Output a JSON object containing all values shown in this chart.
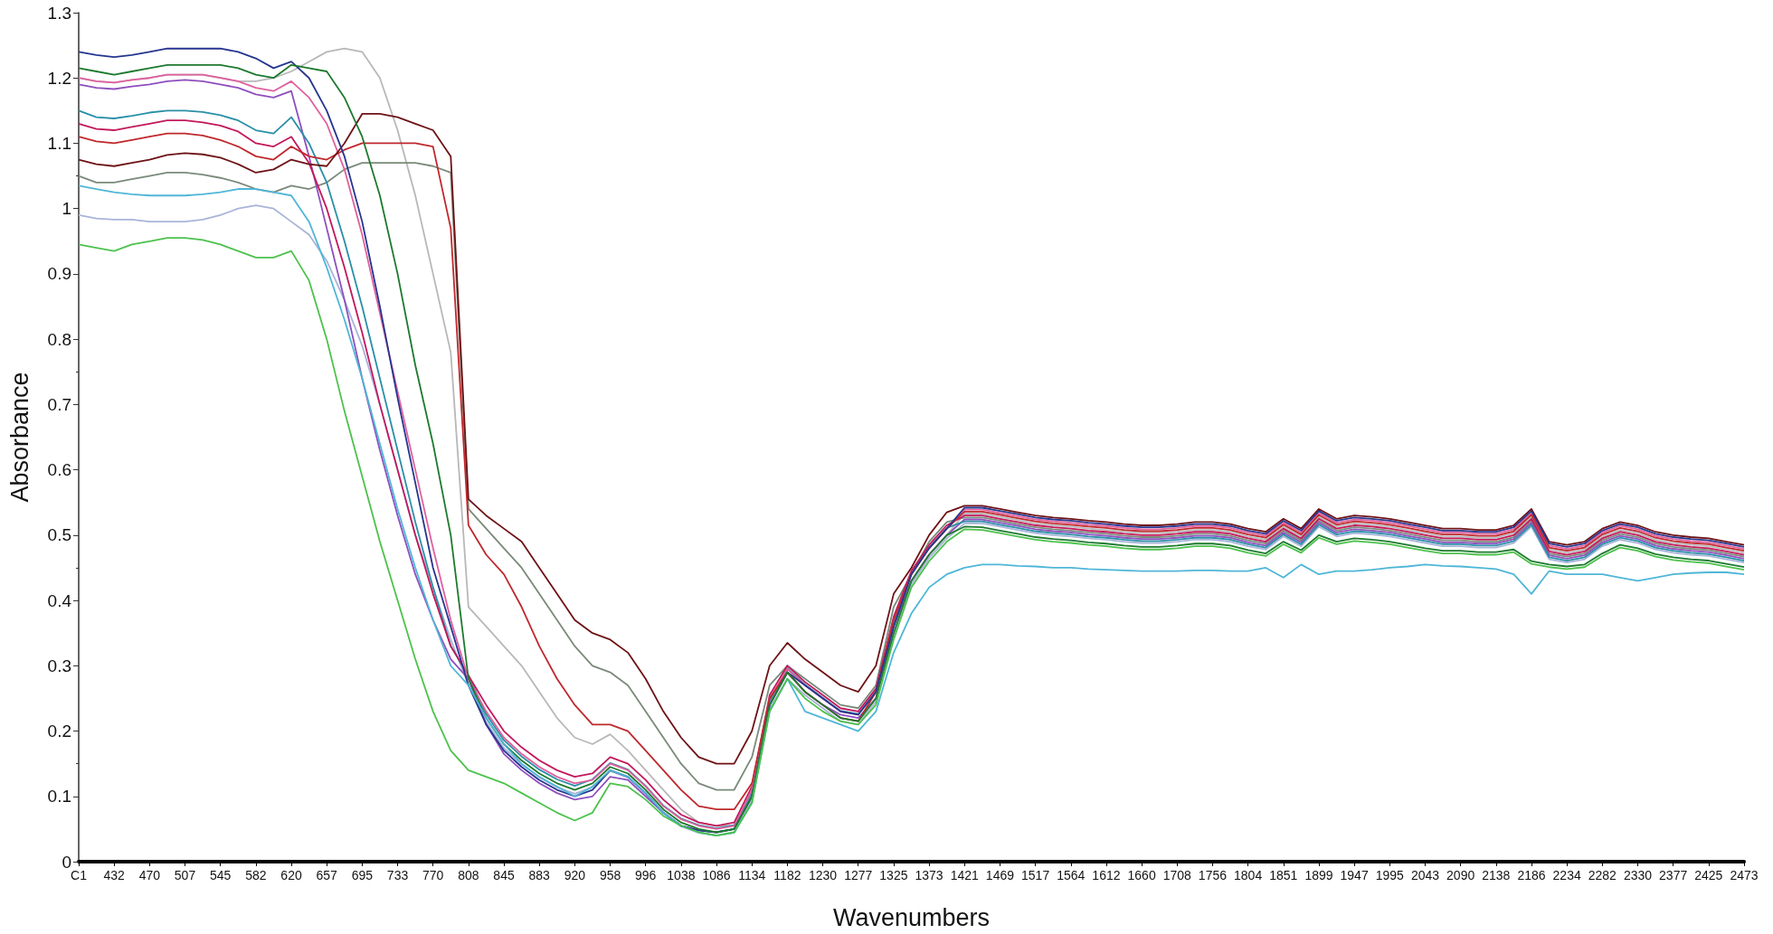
{
  "chart_data": {
    "type": "line",
    "xlabel": "Wavenumbers",
    "ylabel": "Absorbance",
    "categories": [
      "C1",
      null,
      "432",
      null,
      "470",
      null,
      "507",
      null,
      "545",
      null,
      "582",
      null,
      "620",
      null,
      "657",
      null,
      "695",
      null,
      "733",
      null,
      "770",
      null,
      "808",
      null,
      "845",
      null,
      "883",
      null,
      "920",
      null,
      "958",
      null,
      "996",
      null,
      "1038",
      null,
      "1086",
      null,
      "1134",
      null,
      "1182",
      null,
      "1230",
      null,
      "1277",
      null,
      "1325",
      null,
      "1373",
      null,
      "1421",
      null,
      "1469",
      null,
      "1517",
      null,
      "1564",
      null,
      "1612",
      null,
      "1660",
      null,
      "1708",
      null,
      "1756",
      null,
      "1804",
      null,
      "1851",
      null,
      "1899",
      null,
      "1947",
      null,
      "1995",
      null,
      "2043",
      null,
      "2090",
      null,
      "2138",
      null,
      "2186",
      null,
      "2234",
      null,
      "2282",
      null,
      "2330",
      null,
      "2377",
      null,
      "2425",
      null,
      "2473"
    ],
    "ylim": [
      0,
      1.3
    ],
    "yticks": [
      0,
      0.1,
      0.2,
      0.3,
      0.4,
      0.5,
      0.6,
      0.7,
      0.8,
      0.9,
      1,
      1.1,
      1.2,
      1.3
    ],
    "series": [
      {
        "color": "#b8b8b8",
        "values": [
          1.2,
          1.195,
          1.193,
          1.197,
          1.2,
          1.205,
          1.205,
          1.205,
          1.2,
          1.195,
          1.195,
          1.2,
          1.21,
          1.225,
          1.24,
          1.245,
          1.24,
          1.2,
          1.12,
          1.02,
          0.9,
          0.78,
          0.39,
          0.36,
          0.33,
          0.3,
          0.26,
          0.22,
          0.19,
          0.18,
          0.195,
          0.17,
          0.14,
          0.11,
          0.08,
          0.06,
          0.055,
          0.055,
          0.1,
          0.24,
          0.29,
          0.26,
          0.24,
          0.22,
          0.215,
          0.25,
          0.36,
          0.43,
          0.47,
          0.5,
          0.533,
          0.533,
          0.528,
          0.523,
          0.518,
          0.515,
          0.513,
          0.51,
          0.508,
          0.505,
          0.503,
          0.503,
          0.505,
          0.508,
          0.508,
          0.505,
          0.498,
          0.493,
          0.513,
          0.498,
          0.528,
          0.513,
          0.518,
          0.516,
          0.513,
          0.508,
          0.503,
          0.498,
          0.498,
          0.496,
          0.496,
          0.503,
          0.528,
          0.478,
          0.473,
          0.478,
          0.498,
          0.508,
          0.503,
          0.493,
          0.488,
          0.485,
          0.483,
          0.478,
          0.473
        ]
      },
      {
        "color": "#a9b4d8",
        "values": [
          0.99,
          0.985,
          0.983,
          0.983,
          0.98,
          0.98,
          0.98,
          0.983,
          0.99,
          1.0,
          1.005,
          1.0,
          0.98,
          0.96,
          0.92,
          0.86,
          0.79,
          0.7,
          0.6,
          0.5,
          0.42,
          0.34,
          0.27,
          0.214,
          0.174,
          0.149,
          0.129,
          0.114,
          0.104,
          0.114,
          0.139,
          0.129,
          0.104,
          0.074,
          0.054,
          0.044,
          0.04,
          0.044,
          0.094,
          0.234,
          0.28,
          0.255,
          0.235,
          0.215,
          0.21,
          0.245,
          0.345,
          0.425,
          0.465,
          0.495,
          0.518,
          0.518,
          0.513,
          0.508,
          0.503,
          0.5,
          0.498,
          0.495,
          0.493,
          0.49,
          0.488,
          0.488,
          0.49,
          0.493,
          0.493,
          0.49,
          0.483,
          0.478,
          0.498,
          0.483,
          0.513,
          0.498,
          0.503,
          0.501,
          0.498,
          0.493,
          0.488,
          0.483,
          0.483,
          0.481,
          0.481,
          0.488,
          0.513,
          0.463,
          0.458,
          0.463,
          0.483,
          0.493,
          0.488,
          0.478,
          0.473,
          0.47,
          0.468,
          0.463,
          0.458
        ]
      },
      {
        "color": "#7a8a7a",
        "values": [
          1.05,
          1.04,
          1.04,
          1.045,
          1.05,
          1.055,
          1.055,
          1.052,
          1.047,
          1.04,
          1.03,
          1.025,
          1.035,
          1.03,
          1.04,
          1.06,
          1.07,
          1.07,
          1.07,
          1.07,
          1.065,
          1.055,
          0.54,
          0.51,
          0.48,
          0.45,
          0.41,
          0.37,
          0.33,
          0.3,
          0.29,
          0.27,
          0.23,
          0.19,
          0.15,
          0.12,
          0.11,
          0.11,
          0.16,
          0.27,
          0.3,
          0.28,
          0.26,
          0.24,
          0.235,
          0.27,
          0.39,
          0.44,
          0.49,
          0.52,
          0.527,
          0.527,
          0.522,
          0.517,
          0.512,
          0.509,
          0.507,
          0.504,
          0.502,
          0.499,
          0.497,
          0.497,
          0.499,
          0.502,
          0.502,
          0.499,
          0.492,
          0.487,
          0.507,
          0.492,
          0.522,
          0.507,
          0.512,
          0.51,
          0.507,
          0.502,
          0.497,
          0.492,
          0.492,
          0.49,
          0.49,
          0.497,
          0.522,
          0.472,
          0.467,
          0.472,
          0.492,
          0.502,
          0.497,
          0.487,
          0.482,
          0.479,
          0.477,
          0.472,
          0.467
        ]
      },
      {
        "color": "#8e4fbf",
        "values": [
          1.19,
          1.185,
          1.183,
          1.187,
          1.19,
          1.195,
          1.197,
          1.195,
          1.19,
          1.185,
          1.175,
          1.17,
          1.18,
          1.08,
          0.97,
          0.86,
          0.74,
          0.63,
          0.53,
          0.44,
          0.37,
          0.31,
          0.28,
          0.21,
          0.165,
          0.14,
          0.12,
          0.105,
          0.095,
          0.1,
          0.13,
          0.125,
          0.1,
          0.075,
          0.055,
          0.048,
          0.045,
          0.05,
          0.1,
          0.24,
          0.29,
          0.26,
          0.24,
          0.225,
          0.22,
          0.25,
          0.36,
          0.43,
          0.47,
          0.5,
          0.524,
          0.524,
          0.519,
          0.514,
          0.509,
          0.506,
          0.504,
          0.501,
          0.499,
          0.496,
          0.494,
          0.494,
          0.496,
          0.499,
          0.499,
          0.496,
          0.489,
          0.484,
          0.504,
          0.489,
          0.519,
          0.504,
          0.509,
          0.507,
          0.504,
          0.499,
          0.494,
          0.489,
          0.489,
          0.487,
          0.487,
          0.494,
          0.519,
          0.469,
          0.464,
          0.469,
          0.489,
          0.499,
          0.494,
          0.484,
          0.479,
          0.476,
          0.474,
          0.469,
          0.464
        ]
      },
      {
        "color": "#2a8fa8",
        "values": [
          1.15,
          1.14,
          1.138,
          1.142,
          1.147,
          1.15,
          1.15,
          1.148,
          1.143,
          1.135,
          1.12,
          1.115,
          1.14,
          1.1,
          1.04,
          0.95,
          0.85,
          0.74,
          0.63,
          0.52,
          0.42,
          0.33,
          0.285,
          0.226,
          0.186,
          0.161,
          0.141,
          0.126,
          0.116,
          0.126,
          0.151,
          0.141,
          0.116,
          0.086,
          0.066,
          0.056,
          0.051,
          0.056,
          0.106,
          0.246,
          0.296,
          0.271,
          0.251,
          0.231,
          0.226,
          0.261,
          0.366,
          0.441,
          0.481,
          0.511,
          0.521,
          0.521,
          0.516,
          0.511,
          0.506,
          0.503,
          0.501,
          0.498,
          0.496,
          0.493,
          0.491,
          0.491,
          0.493,
          0.496,
          0.496,
          0.493,
          0.486,
          0.481,
          0.501,
          0.486,
          0.516,
          0.501,
          0.506,
          0.504,
          0.501,
          0.496,
          0.491,
          0.486,
          0.486,
          0.484,
          0.484,
          0.491,
          0.516,
          0.466,
          0.461,
          0.466,
          0.486,
          0.496,
          0.491,
          0.481,
          0.476,
          0.473,
          0.471,
          0.466,
          0.461
        ]
      },
      {
        "color": "#c2185b",
        "values": [
          1.13,
          1.122,
          1.12,
          1.125,
          1.13,
          1.135,
          1.135,
          1.132,
          1.127,
          1.118,
          1.1,
          1.095,
          1.11,
          1.07,
          1.0,
          0.91,
          0.81,
          0.7,
          0.6,
          0.5,
          0.41,
          0.33,
          0.285,
          0.24,
          0.2,
          0.175,
          0.155,
          0.14,
          0.13,
          0.135,
          0.16,
          0.15,
          0.125,
          0.095,
          0.072,
          0.06,
          0.055,
          0.06,
          0.115,
          0.255,
          0.3,
          0.275,
          0.255,
          0.235,
          0.23,
          0.265,
          0.375,
          0.445,
          0.485,
          0.515,
          0.53,
          0.53,
          0.525,
          0.52,
          0.515,
          0.512,
          0.51,
          0.507,
          0.505,
          0.502,
          0.5,
          0.5,
          0.502,
          0.505,
          0.505,
          0.502,
          0.495,
          0.49,
          0.51,
          0.495,
          0.525,
          0.51,
          0.515,
          0.513,
          0.51,
          0.505,
          0.5,
          0.495,
          0.495,
          0.493,
          0.493,
          0.5,
          0.525,
          0.475,
          0.47,
          0.475,
          0.495,
          0.505,
          0.5,
          0.49,
          0.485,
          0.482,
          0.48,
          0.475,
          0.47
        ]
      },
      {
        "color": "#e0609e",
        "values": [
          1.2,
          1.195,
          1.193,
          1.197,
          1.2,
          1.205,
          1.205,
          1.205,
          1.2,
          1.195,
          1.185,
          1.18,
          1.195,
          1.17,
          1.13,
          1.06,
          0.96,
          0.84,
          0.72,
          0.6,
          0.48,
          0.37,
          0.28,
          0.23,
          0.19,
          0.165,
          0.145,
          0.13,
          0.12,
          0.125,
          0.15,
          0.14,
          0.115,
          0.085,
          0.065,
          0.055,
          0.05,
          0.055,
          0.11,
          0.25,
          0.295,
          0.27,
          0.25,
          0.23,
          0.225,
          0.26,
          0.37,
          0.44,
          0.48,
          0.51,
          0.539,
          0.539,
          0.534,
          0.529,
          0.524,
          0.521,
          0.519,
          0.516,
          0.514,
          0.511,
          0.509,
          0.509,
          0.511,
          0.514,
          0.514,
          0.511,
          0.504,
          0.499,
          0.519,
          0.504,
          0.534,
          0.519,
          0.524,
          0.522,
          0.519,
          0.514,
          0.509,
          0.504,
          0.504,
          0.502,
          0.502,
          0.509,
          0.534,
          0.484,
          0.479,
          0.484,
          0.504,
          0.514,
          0.509,
          0.499,
          0.494,
          0.491,
          0.489,
          0.484,
          0.479
        ]
      },
      {
        "color": "#c0282d",
        "values": [
          1.11,
          1.103,
          1.1,
          1.105,
          1.11,
          1.115,
          1.115,
          1.112,
          1.105,
          1.095,
          1.08,
          1.075,
          1.095,
          1.08,
          1.075,
          1.09,
          1.1,
          1.1,
          1.1,
          1.1,
          1.095,
          0.97,
          0.515,
          0.47,
          0.44,
          0.39,
          0.33,
          0.28,
          0.24,
          0.21,
          0.21,
          0.2,
          0.17,
          0.14,
          0.11,
          0.085,
          0.08,
          0.08,
          0.12,
          0.25,
          0.29,
          0.26,
          0.24,
          0.22,
          0.215,
          0.26,
          0.37,
          0.44,
          0.48,
          0.51,
          0.536,
          0.536,
          0.531,
          0.526,
          0.521,
          0.518,
          0.516,
          0.513,
          0.511,
          0.508,
          0.506,
          0.506,
          0.508,
          0.511,
          0.511,
          0.508,
          0.501,
          0.496,
          0.516,
          0.501,
          0.531,
          0.516,
          0.521,
          0.519,
          0.516,
          0.511,
          0.506,
          0.501,
          0.501,
          0.499,
          0.499,
          0.506,
          0.531,
          0.481,
          0.476,
          0.481,
          0.501,
          0.511,
          0.506,
          0.496,
          0.491,
          0.488,
          0.486,
          0.481,
          0.476
        ]
      },
      {
        "color": "#6e1216",
        "values": [
          1.075,
          1.068,
          1.065,
          1.07,
          1.075,
          1.082,
          1.085,
          1.083,
          1.078,
          1.068,
          1.055,
          1.06,
          1.075,
          1.068,
          1.065,
          1.1,
          1.145,
          1.145,
          1.14,
          1.13,
          1.12,
          1.08,
          0.555,
          0.53,
          0.51,
          0.49,
          0.45,
          0.41,
          0.37,
          0.35,
          0.34,
          0.32,
          0.28,
          0.23,
          0.19,
          0.16,
          0.15,
          0.15,
          0.2,
          0.3,
          0.335,
          0.31,
          0.29,
          0.27,
          0.26,
          0.3,
          0.41,
          0.45,
          0.5,
          0.535,
          0.545,
          0.545,
          0.54,
          0.535,
          0.53,
          0.527,
          0.525,
          0.522,
          0.52,
          0.517,
          0.515,
          0.515,
          0.517,
          0.52,
          0.52,
          0.517,
          0.51,
          0.505,
          0.525,
          0.51,
          0.54,
          0.525,
          0.53,
          0.528,
          0.525,
          0.52,
          0.515,
          0.51,
          0.51,
          0.508,
          0.508,
          0.515,
          0.54,
          0.49,
          0.485,
          0.49,
          0.51,
          0.52,
          0.515,
          0.505,
          0.5,
          0.497,
          0.495,
          0.49,
          0.485
        ]
      },
      {
        "color": "#26358f",
        "values": [
          1.24,
          1.235,
          1.232,
          1.235,
          1.24,
          1.245,
          1.245,
          1.245,
          1.245,
          1.24,
          1.23,
          1.215,
          1.225,
          1.2,
          1.15,
          1.08,
          0.98,
          0.85,
          0.71,
          0.58,
          0.45,
          0.36,
          0.27,
          0.21,
          0.17,
          0.145,
          0.125,
          0.11,
          0.1,
          0.11,
          0.14,
          0.13,
          0.105,
          0.075,
          0.055,
          0.048,
          0.045,
          0.05,
          0.1,
          0.24,
          0.29,
          0.27,
          0.25,
          0.23,
          0.225,
          0.26,
          0.36,
          0.44,
          0.48,
          0.51,
          0.542,
          0.542,
          0.537,
          0.532,
          0.527,
          0.524,
          0.522,
          0.519,
          0.517,
          0.514,
          0.512,
          0.512,
          0.514,
          0.517,
          0.517,
          0.514,
          0.507,
          0.502,
          0.522,
          0.507,
          0.537,
          0.522,
          0.527,
          0.525,
          0.522,
          0.517,
          0.512,
          0.507,
          0.507,
          0.505,
          0.505,
          0.512,
          0.537,
          0.487,
          0.482,
          0.487,
          0.507,
          0.517,
          0.512,
          0.502,
          0.497,
          0.494,
          0.492,
          0.487,
          0.482
        ]
      },
      {
        "color": "#1e7a2e",
        "values": [
          1.215,
          1.21,
          1.205,
          1.21,
          1.215,
          1.22,
          1.22,
          1.22,
          1.22,
          1.215,
          1.205,
          1.2,
          1.22,
          1.215,
          1.21,
          1.17,
          1.11,
          1.02,
          0.9,
          0.76,
          0.64,
          0.5,
          0.28,
          0.22,
          0.18,
          0.155,
          0.135,
          0.12,
          0.11,
          0.12,
          0.145,
          0.135,
          0.11,
          0.08,
          0.06,
          0.05,
          0.045,
          0.05,
          0.1,
          0.24,
          0.29,
          0.26,
          0.24,
          0.22,
          0.215,
          0.25,
          0.35,
          0.43,
          0.47,
          0.5,
          0.513,
          0.512,
          0.507,
          0.502,
          0.497,
          0.494,
          0.492,
          0.489,
          0.487,
          0.484,
          0.482,
          0.482,
          0.484,
          0.487,
          0.487,
          0.484,
          0.477,
          0.472,
          0.49,
          0.477,
          0.5,
          0.49,
          0.495,
          0.493,
          0.49,
          0.485,
          0.48,
          0.476,
          0.476,
          0.474,
          0.474,
          0.478,
          0.46,
          0.455,
          0.452,
          0.455,
          0.472,
          0.485,
          0.48,
          0.471,
          0.466,
          0.463,
          0.461,
          0.456,
          0.451
        ]
      },
      {
        "color": "#4fb6d8",
        "values": [
          1.035,
          1.03,
          1.025,
          1.022,
          1.02,
          1.02,
          1.02,
          1.022,
          1.025,
          1.03,
          1.03,
          1.025,
          1.02,
          0.98,
          0.91,
          0.83,
          0.74,
          0.64,
          0.54,
          0.45,
          0.37,
          0.3,
          0.27,
          0.22,
          0.18,
          0.15,
          0.13,
          0.115,
          0.1,
          0.115,
          0.14,
          0.13,
          0.105,
          0.075,
          0.055,
          0.045,
          0.04,
          0.045,
          0.09,
          0.23,
          0.28,
          0.23,
          0.22,
          0.21,
          0.2,
          0.23,
          0.32,
          0.38,
          0.42,
          0.44,
          0.45,
          0.455,
          0.455,
          0.453,
          0.452,
          0.45,
          0.45,
          0.448,
          0.447,
          0.446,
          0.445,
          0.445,
          0.445,
          0.446,
          0.446,
          0.445,
          0.445,
          0.45,
          0.435,
          0.455,
          0.44,
          0.445,
          0.445,
          0.447,
          0.45,
          0.452,
          0.455,
          0.453,
          0.452,
          0.45,
          0.448,
          0.44,
          0.41,
          0.445,
          0.44,
          0.44,
          0.44,
          0.435,
          0.43,
          0.435,
          0.44,
          0.442,
          0.443,
          0.443,
          0.44
        ]
      },
      {
        "color": "#4cc24c",
        "values": [
          0.945,
          0.94,
          0.935,
          0.945,
          0.95,
          0.955,
          0.955,
          0.952,
          0.945,
          0.935,
          0.925,
          0.925,
          0.935,
          0.89,
          0.8,
          0.69,
          0.59,
          0.49,
          0.4,
          0.31,
          0.23,
          0.17,
          0.14,
          0.13,
          0.12,
          0.105,
          0.09,
          0.075,
          0.063,
          0.075,
          0.12,
          0.115,
          0.095,
          0.07,
          0.055,
          0.045,
          0.04,
          0.045,
          0.09,
          0.23,
          0.28,
          0.25,
          0.23,
          0.215,
          0.21,
          0.24,
          0.34,
          0.42,
          0.46,
          0.49,
          0.509,
          0.508,
          0.503,
          0.498,
          0.493,
          0.49,
          0.488,
          0.485,
          0.483,
          0.48,
          0.478,
          0.478,
          0.48,
          0.483,
          0.483,
          0.48,
          0.473,
          0.468,
          0.486,
          0.473,
          0.496,
          0.486,
          0.491,
          0.489,
          0.486,
          0.481,
          0.476,
          0.472,
          0.472,
          0.47,
          0.47,
          0.474,
          0.456,
          0.451,
          0.448,
          0.451,
          0.468,
          0.481,
          0.476,
          0.467,
          0.462,
          0.459,
          0.457,
          0.452,
          0.447
        ]
      }
    ]
  }
}
